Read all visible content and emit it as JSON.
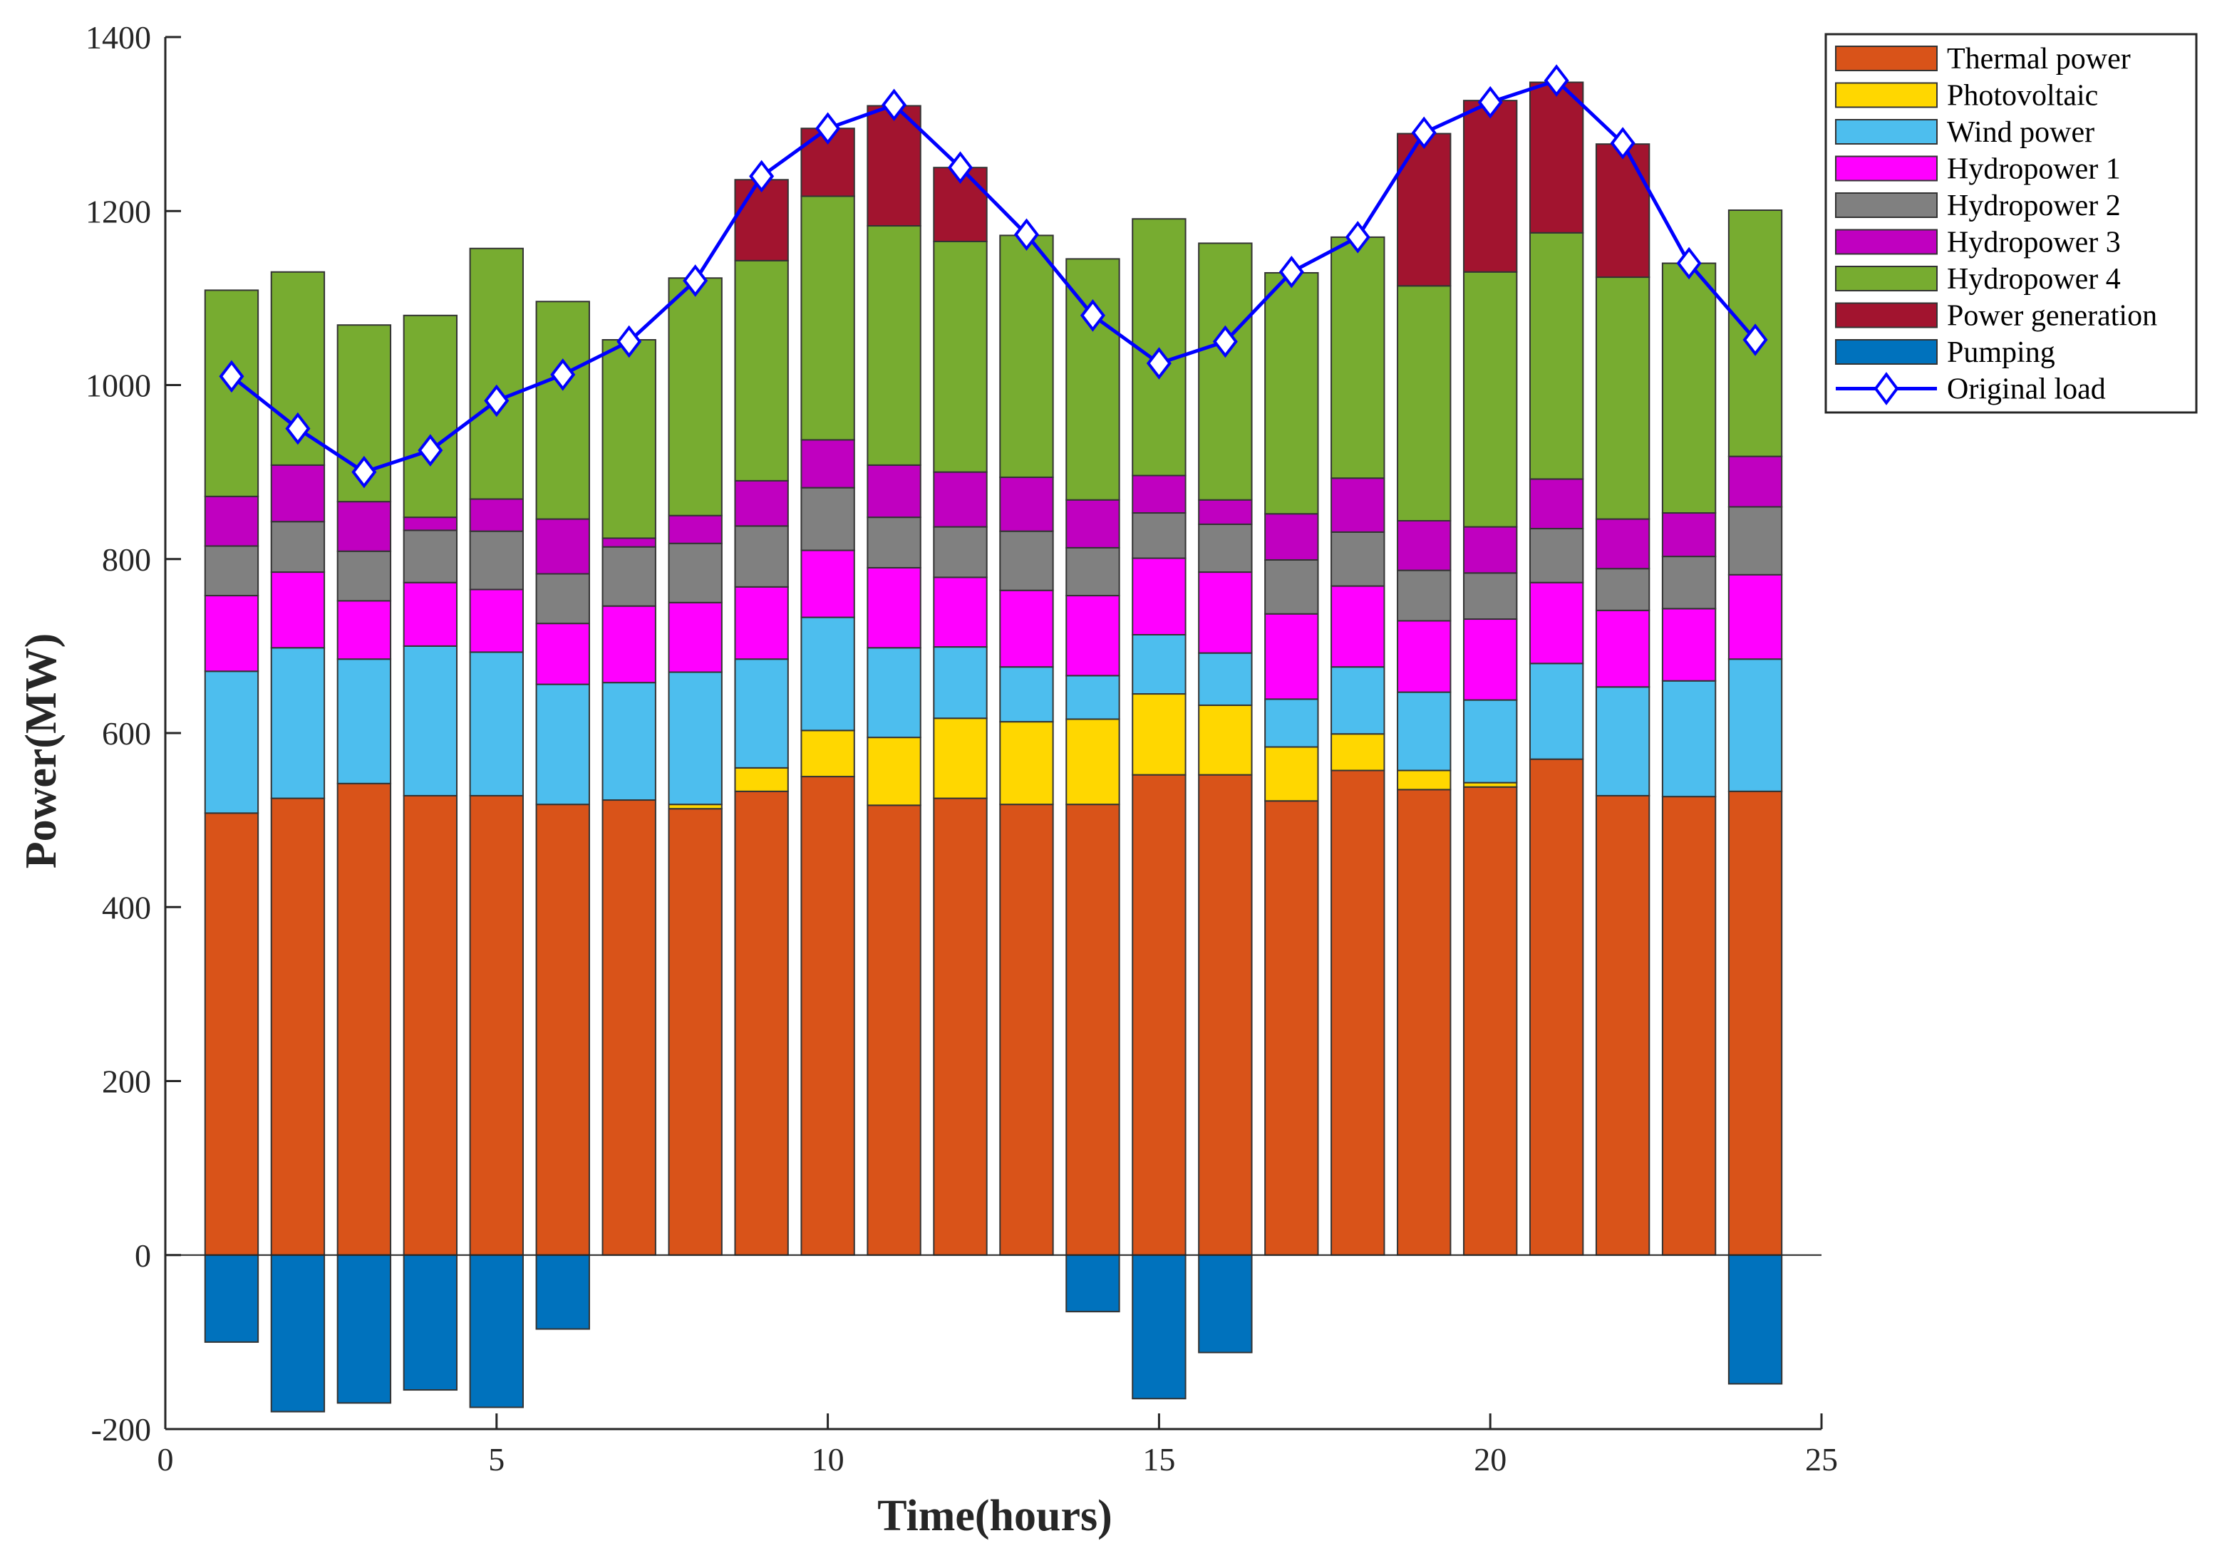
{
  "chart_data": {
    "type": "bar",
    "stacked": true,
    "title": "",
    "xlabel": "Time(hours)",
    "ylabel": "Power(MW)",
    "xlim": [
      0,
      25
    ],
    "ylim": [
      -200,
      1400
    ],
    "xticks": [
      0,
      5,
      10,
      15,
      20,
      25
    ],
    "yticks": [
      -200,
      0,
      200,
      400,
      600,
      800,
      1000,
      1200,
      1400
    ],
    "grid": false,
    "legend_position": "top-right, outside",
    "x": [
      1,
      2,
      3,
      4,
      5,
      6,
      7,
      8,
      9,
      10,
      11,
      12,
      13,
      14,
      15,
      16,
      17,
      18,
      19,
      20,
      21,
      22,
      23,
      24
    ],
    "series": [
      {
        "name": "Thermal power",
        "color": "#D95319",
        "values": [
          508,
          525,
          542,
          528,
          528,
          518,
          523,
          513,
          533,
          550,
          517,
          525,
          518,
          518,
          552,
          552,
          522,
          557,
          535,
          538,
          570,
          528,
          527,
          533
        ]
      },
      {
        "name": "Photovoltaic",
        "color": "#FFD700",
        "values": [
          0,
          0,
          0,
          0,
          0,
          0,
          0,
          5,
          27,
          53,
          78,
          92,
          95,
          98,
          93,
          80,
          62,
          42,
          22,
          5,
          0,
          0,
          0,
          0
        ]
      },
      {
        "name": "Wind power",
        "color": "#4DBEEE",
        "values": [
          163,
          173,
          143,
          172,
          165,
          138,
          135,
          152,
          125,
          130,
          103,
          82,
          63,
          50,
          68,
          60,
          55,
          77,
          90,
          95,
          110,
          125,
          133,
          152
        ]
      },
      {
        "name": "Hydropower 1",
        "color": "#FF00FF",
        "values": [
          87,
          87,
          67,
          73,
          72,
          70,
          88,
          80,
          83,
          77,
          92,
          80,
          88,
          92,
          88,
          93,
          98,
          93,
          82,
          93,
          93,
          88,
          83,
          97
        ]
      },
      {
        "name": "Hydropower 2",
        "color": "#808080",
        "values": [
          57,
          58,
          57,
          60,
          67,
          57,
          68,
          68,
          70,
          72,
          58,
          58,
          68,
          55,
          52,
          55,
          62,
          62,
          58,
          53,
          62,
          48,
          60,
          78
        ]
      },
      {
        "name": "Hydropower 3",
        "color": "#C000C0",
        "values": [
          57,
          65,
          57,
          15,
          37,
          63,
          10,
          32,
          52,
          55,
          60,
          63,
          62,
          55,
          43,
          28,
          53,
          62,
          57,
          53,
          57,
          57,
          50,
          58
        ]
      },
      {
        "name": "Hydropower 4",
        "color": "#77AC30",
        "values": [
          237,
          222,
          203,
          232,
          288,
          250,
          228,
          273,
          253,
          280,
          275,
          265,
          278,
          277,
          295,
          295,
          277,
          277,
          270,
          293,
          283,
          278,
          287,
          283
        ]
      },
      {
        "name": "Power generation",
        "color": "#A2142F",
        "values": [
          0,
          0,
          0,
          0,
          0,
          0,
          0,
          0,
          93,
          78,
          138,
          85,
          0,
          0,
          0,
          0,
          0,
          0,
          175,
          197,
          173,
          153,
          0,
          0
        ]
      },
      {
        "name": "Pumping",
        "color": "#0072BD",
        "values": [
          -100,
          -180,
          -170,
          -155,
          -175,
          -85,
          0,
          0,
          0,
          0,
          0,
          0,
          0,
          -65,
          -165,
          -112,
          0,
          0,
          0,
          0,
          0,
          0,
          0,
          -148
        ]
      }
    ],
    "line": {
      "name": "Original load",
      "color": "#0000FF",
      "marker": "diamond",
      "values": [
        1010,
        950,
        900,
        925,
        982,
        1012,
        1050,
        1120,
        1240,
        1295,
        1322,
        1250,
        1173,
        1080,
        1025,
        1050,
        1130,
        1170,
        1290,
        1325,
        1350,
        1278,
        1140,
        1052
      ]
    }
  }
}
